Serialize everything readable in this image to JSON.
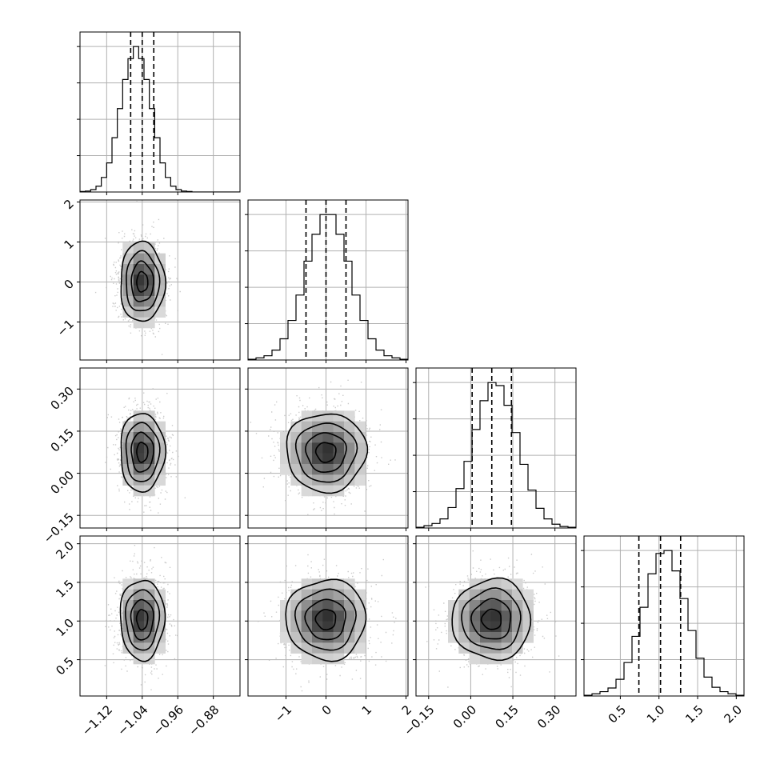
{
  "chart_data": {
    "type": "corner",
    "grid": true,
    "parameters": [
      {
        "mean": -1.04,
        "sd": 0.025,
        "quantiles": [
          -1.066,
          -1.04,
          -1.014
        ],
        "range": [
          -1.18,
          -0.82
        ],
        "ticks": [
          -1.12,
          -1.04,
          -0.96,
          -0.88
        ],
        "tick_labels": [
          "−1.12",
          "−1.04",
          "−0.96",
          "−0.88"
        ]
      },
      {
        "mean": 0.0,
        "sd": 0.5,
        "quantiles": [
          -0.5,
          0.0,
          0.5
        ],
        "range": [
          -1.95,
          2.05
        ],
        "ticks": [
          -1,
          0,
          1,
          2
        ],
        "tick_labels": [
          "−1",
          "0",
          "1",
          "2"
        ]
      },
      {
        "mean": 0.075,
        "sd": 0.07,
        "quantiles": [
          0.005,
          0.075,
          0.145
        ],
        "range": [
          -0.195,
          0.375
        ],
        "ticks": [
          -0.15,
          0.0,
          0.15,
          0.3
        ],
        "tick_labels": [
          "−0.15",
          "0.00",
          "0.15",
          "0.30"
        ]
      },
      {
        "mean": 1.02,
        "sd": 0.26,
        "quantiles": [
          0.74,
          1.02,
          1.28
        ],
        "range": [
          0.03,
          2.1
        ],
        "ticks": [
          0.5,
          1.0,
          1.5,
          2.0
        ],
        "tick_labels": [
          "0.5",
          "1.0",
          "1.5",
          "2.0"
        ]
      }
    ],
    "histograms": [
      {
        "bins": 30,
        "heights": [
          1,
          2,
          5,
          12,
          30,
          60,
          112,
          172,
          232,
          275,
          300,
          275,
          232,
          172,
          112,
          60,
          30,
          12,
          5,
          2,
          1,
          0,
          0,
          0,
          0,
          0,
          0,
          0,
          0,
          0
        ]
      },
      {
        "bins": 20,
        "heights": [
          1,
          3,
          6,
          14,
          30,
          56,
          92,
          140,
          178,
          206,
          206,
          178,
          140,
          92,
          56,
          30,
          14,
          6,
          3,
          1
        ]
      },
      {
        "bins": 20,
        "heights": [
          1,
          3,
          6,
          12,
          27,
          52,
          88,
          130,
          168,
          192,
          188,
          162,
          126,
          84,
          50,
          26,
          12,
          5,
          2,
          1
        ]
      },
      {
        "bins": 20,
        "heights": [
          1,
          3,
          6,
          11,
          23,
          46,
          82,
          122,
          168,
          196,
          200,
          172,
          134,
          90,
          52,
          26,
          12,
          6,
          3,
          1
        ]
      }
    ]
  }
}
